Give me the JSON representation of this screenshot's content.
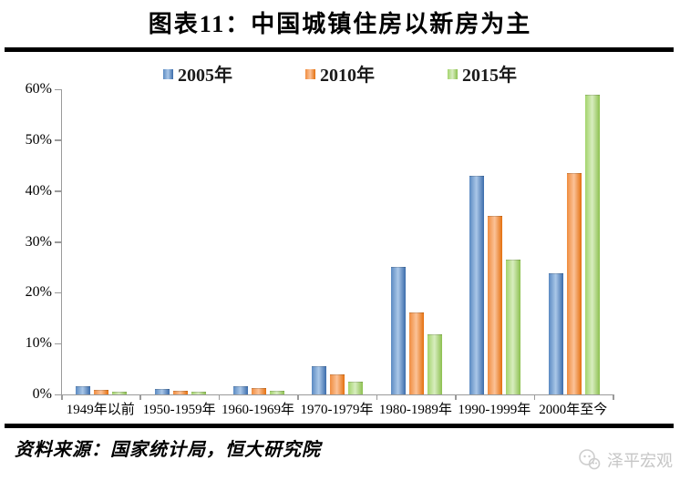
{
  "title": "图表11：中国城镇住房以新房为主",
  "chart_data": {
    "type": "bar",
    "title": "图表11：中国城镇住房以新房为主",
    "categories": [
      "1949年以前",
      "1950-1959年",
      "1960-1969年",
      "1970-1979年",
      "1980-1989年",
      "1990-1999年",
      "2000年至今"
    ],
    "series": [
      {
        "name": "2005年",
        "values": [
          1.5,
          0.9,
          1.4,
          5.3,
          24.9,
          42.8,
          23.6
        ],
        "color_mid": "#5b8ac2",
        "color_light": "#aac7e8",
        "color_dark": "#3b6cab"
      },
      {
        "name": "2010年",
        "values": [
          0.8,
          0.6,
          1.0,
          3.7,
          16.0,
          35.0,
          43.3
        ],
        "color_mid": "#f08c3e",
        "color_light": "#fbc298",
        "color_dark": "#e4700e"
      },
      {
        "name": "2015年",
        "values": [
          0.4,
          0.3,
          0.6,
          2.4,
          11.7,
          26.3,
          58.8
        ],
        "color_mid": "#a3d46c",
        "color_light": "#d8edbf",
        "color_dark": "#8cc04f"
      }
    ],
    "xlabel": "",
    "ylabel": "",
    "ylim": [
      0,
      60
    ],
    "yticks": [
      "0%",
      "10%",
      "20%",
      "30%",
      "40%",
      "50%",
      "60%"
    ],
    "grid": false,
    "legend_position": "top"
  },
  "footer": {
    "source": "资料来源：国家统计局，恒大研究院",
    "watermark": "泽平宏观"
  }
}
